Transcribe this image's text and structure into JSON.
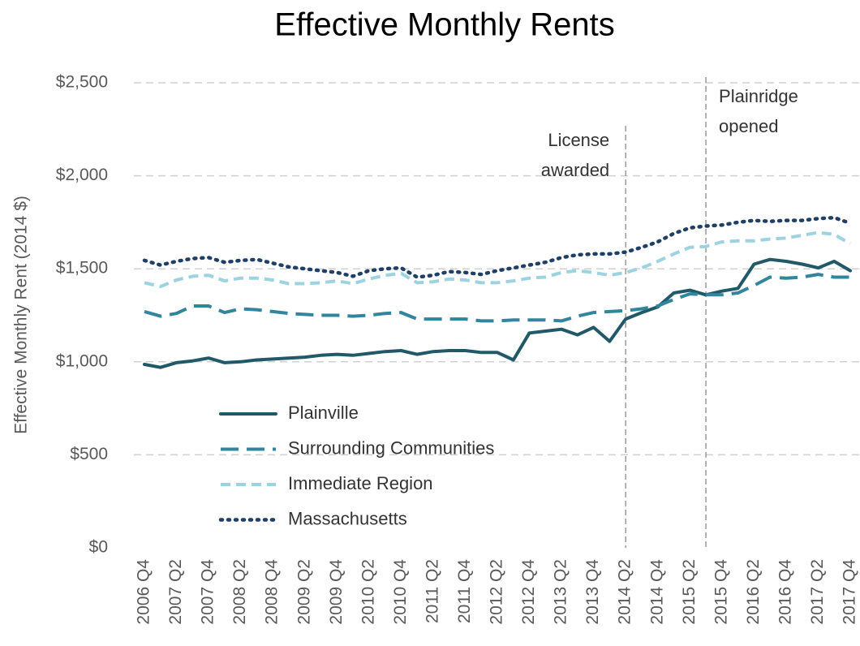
{
  "chart_data": {
    "type": "line",
    "title": "Effective Monthly Rents",
    "y_label": "Effective Monthly Rent (2014 $)",
    "categories": [
      "2006 Q4",
      null,
      "2007 Q2",
      null,
      "2007 Q4",
      null,
      "2008 Q2",
      null,
      "2008 Q4",
      null,
      "2009 Q2",
      null,
      "2009 Q4",
      null,
      "2010 Q2",
      null,
      "2010 Q4",
      null,
      "2011 Q2",
      null,
      "2011 Q4",
      null,
      "2012 Q2",
      null,
      "2012 Q4",
      null,
      "2013 Q2",
      null,
      "2013 Q4",
      null,
      "2014 Q2",
      null,
      "2014 Q4",
      null,
      "2015 Q2",
      null,
      "2015 Q4",
      null,
      "2016 Q2",
      null,
      "2016 Q4",
      null,
      "2017 Q2",
      null,
      "2017 Q4"
    ],
    "series": [
      {
        "name": "Plainville",
        "color": "#215968",
        "style": "solid",
        "values": [
          986,
          970,
          995,
          1005,
          1020,
          995,
          1000,
          1010,
          1015,
          1020,
          1025,
          1035,
          1040,
          1035,
          1045,
          1055,
          1060,
          1040,
          1055,
          1060,
          1060,
          1050,
          1050,
          1010,
          1155,
          1165,
          1175,
          1145,
          1185,
          1110,
          1230,
          1265,
          1295,
          1370,
          1385,
          1360,
          1380,
          1395,
          1525,
          1550,
          1540,
          1525,
          1505,
          1540,
          1490
        ]
      },
      {
        "name": "Surrounding Communities",
        "color": "#31859c",
        "style": "long-dash",
        "values": [
          1270,
          1245,
          1260,
          1300,
          1300,
          1265,
          1285,
          1280,
          1270,
          1260,
          1255,
          1250,
          1250,
          1245,
          1250,
          1260,
          1265,
          1230,
          1230,
          1230,
          1230,
          1220,
          1220,
          1225,
          1225,
          1225,
          1220,
          1245,
          1265,
          1270,
          1275,
          1285,
          1300,
          1335,
          1365,
          1360,
          1360,
          1370,
          1410,
          1455,
          1450,
          1455,
          1470,
          1455,
          1455
        ]
      },
      {
        "name": "Immediate Region",
        "color": "#9dd3e0",
        "style": "short-dash",
        "values": [
          1425,
          1405,
          1440,
          1460,
          1465,
          1435,
          1450,
          1450,
          1440,
          1420,
          1420,
          1425,
          1435,
          1420,
          1445,
          1465,
          1475,
          1425,
          1430,
          1445,
          1440,
          1425,
          1425,
          1435,
          1450,
          1455,
          1480,
          1490,
          1480,
          1465,
          1480,
          1505,
          1540,
          1580,
          1615,
          1620,
          1645,
          1650,
          1650,
          1660,
          1665,
          1680,
          1695,
          1685,
          1635
        ]
      },
      {
        "name": "Massachusetts",
        "color": "#1f3f66",
        "style": "dot",
        "values": [
          1545,
          1520,
          1540,
          1555,
          1560,
          1535,
          1545,
          1550,
          1530,
          1510,
          1500,
          1490,
          1480,
          1460,
          1490,
          1500,
          1505,
          1455,
          1465,
          1485,
          1480,
          1470,
          1490,
          1505,
          1520,
          1535,
          1560,
          1575,
          1580,
          1580,
          1590,
          1615,
          1645,
          1690,
          1720,
          1730,
          1735,
          1750,
          1760,
          1755,
          1760,
          1760,
          1770,
          1775,
          1745
        ]
      }
    ],
    "ylim": [
      0,
      2500
    ],
    "yticks": [
      {
        "value": 0,
        "label": "$0"
      },
      {
        "value": 500,
        "label": "$500"
      },
      {
        "value": 1000,
        "label": "$1,000"
      },
      {
        "value": 1500,
        "label": "$1,500"
      },
      {
        "value": 2000,
        "label": "$2,000"
      },
      {
        "value": 2500,
        "label": "$2,500"
      }
    ],
    "grid": true,
    "legend": "lower left",
    "annotations": [
      {
        "index": 30,
        "text": [
          "License",
          "awarded"
        ],
        "align": "left"
      },
      {
        "index": 35,
        "text": [
          "Plainridge",
          "opened"
        ],
        "align": "right"
      }
    ]
  }
}
